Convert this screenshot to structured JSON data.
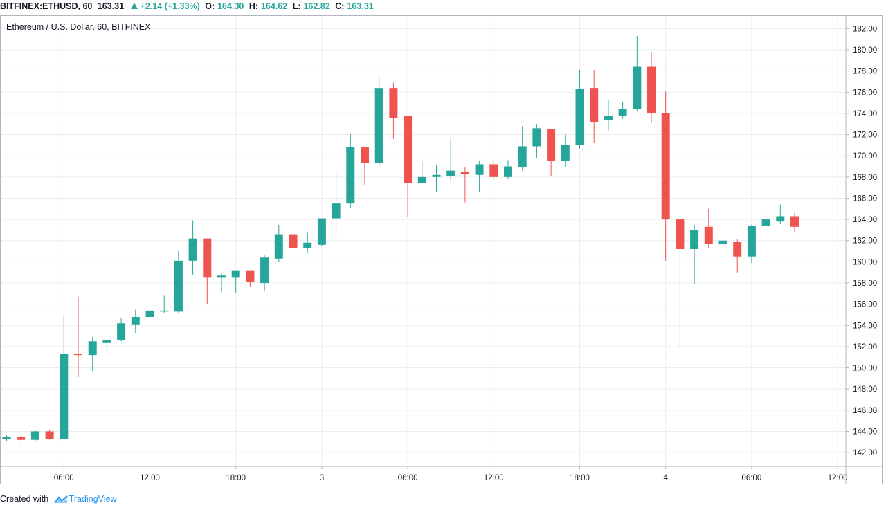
{
  "header": {
    "symbol": "BITFINEX:ETHUSD, 60",
    "last": "163.31",
    "change": "+2.14 (+1.33%)",
    "o_label": "O:",
    "o_val": "164.30",
    "h_label": "H:",
    "h_val": "164.62",
    "l_label": "L:",
    "l_val": "162.82",
    "c_label": "C:",
    "c_val": "163.31"
  },
  "footer": {
    "created_with": "Created with",
    "brand": "TradingView"
  },
  "colors": {
    "up": "#26a69a",
    "down": "#ef5350",
    "grid": "#e9edf1",
    "axis": "#b2b5be",
    "text": "#131722"
  },
  "chart_data": {
    "type": "candlestick",
    "title": "Ethereum / U.S. Dollar, 60, BITFINEX",
    "ylim": [
      140.7,
      183.2
    ],
    "y_ticks": [
      142,
      144,
      146,
      148,
      150,
      152,
      154,
      156,
      158,
      160,
      162,
      164,
      166,
      168,
      170,
      172,
      174,
      176,
      178,
      180,
      182
    ],
    "y_tick_labels": [
      "142.00",
      "144.00",
      "146.00",
      "148.00",
      "150.00",
      "152.00",
      "154.00",
      "156.00",
      "158.00",
      "160.00",
      "162.00",
      "164.00",
      "166.00",
      "168.00",
      "170.00",
      "172.00",
      "174.00",
      "176.00",
      "178.00",
      "180.00",
      "182.00"
    ],
    "x_ticks": [
      {
        "label": "06:00",
        "bar": 4
      },
      {
        "label": "12:00",
        "bar": 10
      },
      {
        "label": "18:00",
        "bar": 16
      },
      {
        "label": "3",
        "bar": 22
      },
      {
        "label": "06:00",
        "bar": 28
      },
      {
        "label": "12:00",
        "bar": 34
      },
      {
        "label": "18:00",
        "bar": 40
      },
      {
        "label": "4",
        "bar": 46
      },
      {
        "label": "06:00",
        "bar": 52
      },
      {
        "label": "12:00",
        "bar": 58
      }
    ],
    "grid": true,
    "candles": [
      {
        "o": 143.3,
        "h": 143.7,
        "l": 143.1,
        "c": 143.5
      },
      {
        "o": 143.5,
        "h": 143.6,
        "l": 143.1,
        "c": 143.2
      },
      {
        "o": 143.2,
        "h": 144.1,
        "l": 143.1,
        "c": 144.0
      },
      {
        "o": 144.0,
        "h": 144.1,
        "l": 143.2,
        "c": 143.3
      },
      {
        "o": 143.3,
        "h": 155.0,
        "l": 143.3,
        "c": 151.3
      },
      {
        "o": 151.3,
        "h": 156.7,
        "l": 149.1,
        "c": 151.2
      },
      {
        "o": 151.2,
        "h": 152.9,
        "l": 149.7,
        "c": 152.5
      },
      {
        "o": 152.4,
        "h": 152.6,
        "l": 151.6,
        "c": 152.6
      },
      {
        "o": 152.6,
        "h": 154.7,
        "l": 152.5,
        "c": 154.2
      },
      {
        "o": 154.1,
        "h": 155.5,
        "l": 153.3,
        "c": 154.8
      },
      {
        "o": 154.8,
        "h": 155.5,
        "l": 154.1,
        "c": 155.4
      },
      {
        "o": 155.3,
        "h": 156.8,
        "l": 155.2,
        "c": 155.4
      },
      {
        "o": 155.3,
        "h": 161.1,
        "l": 155.2,
        "c": 160.1
      },
      {
        "o": 160.1,
        "h": 163.9,
        "l": 158.8,
        "c": 162.2
      },
      {
        "o": 162.2,
        "h": 162.2,
        "l": 156.0,
        "c": 158.5
      },
      {
        "o": 158.5,
        "h": 158.9,
        "l": 157.1,
        "c": 158.7
      },
      {
        "o": 158.5,
        "h": 159.2,
        "l": 157.1,
        "c": 159.2
      },
      {
        "o": 159.2,
        "h": 159.2,
        "l": 157.6,
        "c": 158.1
      },
      {
        "o": 158.0,
        "h": 160.6,
        "l": 157.2,
        "c": 160.4
      },
      {
        "o": 160.3,
        "h": 163.5,
        "l": 160.0,
        "c": 162.6
      },
      {
        "o": 162.6,
        "h": 164.8,
        "l": 160.6,
        "c": 161.3
      },
      {
        "o": 161.3,
        "h": 162.8,
        "l": 160.8,
        "c": 161.8
      },
      {
        "o": 161.6,
        "h": 164.1,
        "l": 161.5,
        "c": 164.1
      },
      {
        "o": 164.1,
        "h": 168.5,
        "l": 162.7,
        "c": 165.5
      },
      {
        "o": 165.5,
        "h": 172.1,
        "l": 165.1,
        "c": 170.8
      },
      {
        "o": 170.8,
        "h": 170.8,
        "l": 167.2,
        "c": 169.3
      },
      {
        "o": 169.3,
        "h": 177.5,
        "l": 169.0,
        "c": 176.4
      },
      {
        "o": 176.4,
        "h": 176.9,
        "l": 171.6,
        "c": 173.6
      },
      {
        "o": 173.8,
        "h": 173.8,
        "l": 164.2,
        "c": 167.4
      },
      {
        "o": 167.4,
        "h": 169.5,
        "l": 167.4,
        "c": 168.0
      },
      {
        "o": 168.0,
        "h": 169.1,
        "l": 166.6,
        "c": 168.2
      },
      {
        "o": 168.1,
        "h": 171.6,
        "l": 167.6,
        "c": 168.6
      },
      {
        "o": 168.5,
        "h": 168.9,
        "l": 165.6,
        "c": 168.3
      },
      {
        "o": 168.2,
        "h": 169.5,
        "l": 166.6,
        "c": 169.2
      },
      {
        "o": 169.2,
        "h": 169.6,
        "l": 167.8,
        "c": 168.0
      },
      {
        "o": 168.0,
        "h": 169.6,
        "l": 167.8,
        "c": 169.0
      },
      {
        "o": 168.9,
        "h": 172.8,
        "l": 168.6,
        "c": 170.9
      },
      {
        "o": 170.9,
        "h": 173.0,
        "l": 169.8,
        "c": 172.6
      },
      {
        "o": 172.5,
        "h": 172.5,
        "l": 168.1,
        "c": 169.5
      },
      {
        "o": 169.5,
        "h": 172.0,
        "l": 168.9,
        "c": 171.0
      },
      {
        "o": 171.0,
        "h": 178.1,
        "l": 170.7,
        "c": 176.3
      },
      {
        "o": 176.4,
        "h": 178.1,
        "l": 171.2,
        "c": 173.2
      },
      {
        "o": 173.4,
        "h": 175.3,
        "l": 172.4,
        "c": 173.8
      },
      {
        "o": 173.8,
        "h": 175.1,
        "l": 173.5,
        "c": 174.4
      },
      {
        "o": 174.4,
        "h": 181.3,
        "l": 174.2,
        "c": 178.4
      },
      {
        "o": 178.4,
        "h": 179.8,
        "l": 173.1,
        "c": 174.0
      },
      {
        "o": 174.0,
        "h": 176.1,
        "l": 160.1,
        "c": 164.0
      },
      {
        "o": 164.0,
        "h": 164.0,
        "l": 151.8,
        "c": 161.2
      },
      {
        "o": 161.2,
        "h": 163.5,
        "l": 157.9,
        "c": 163.0
      },
      {
        "o": 163.3,
        "h": 165.0,
        "l": 161.3,
        "c": 161.7
      },
      {
        "o": 161.7,
        "h": 163.9,
        "l": 161.5,
        "c": 162.0
      },
      {
        "o": 161.9,
        "h": 162.1,
        "l": 159.0,
        "c": 160.5
      },
      {
        "o": 160.5,
        "h": 163.5,
        "l": 159.9,
        "c": 163.4
      },
      {
        "o": 163.4,
        "h": 164.6,
        "l": 163.4,
        "c": 164.0
      },
      {
        "o": 163.8,
        "h": 165.4,
        "l": 163.6,
        "c": 164.3
      },
      {
        "o": 164.3,
        "h": 164.6,
        "l": 162.8,
        "c": 163.3
      }
    ]
  }
}
